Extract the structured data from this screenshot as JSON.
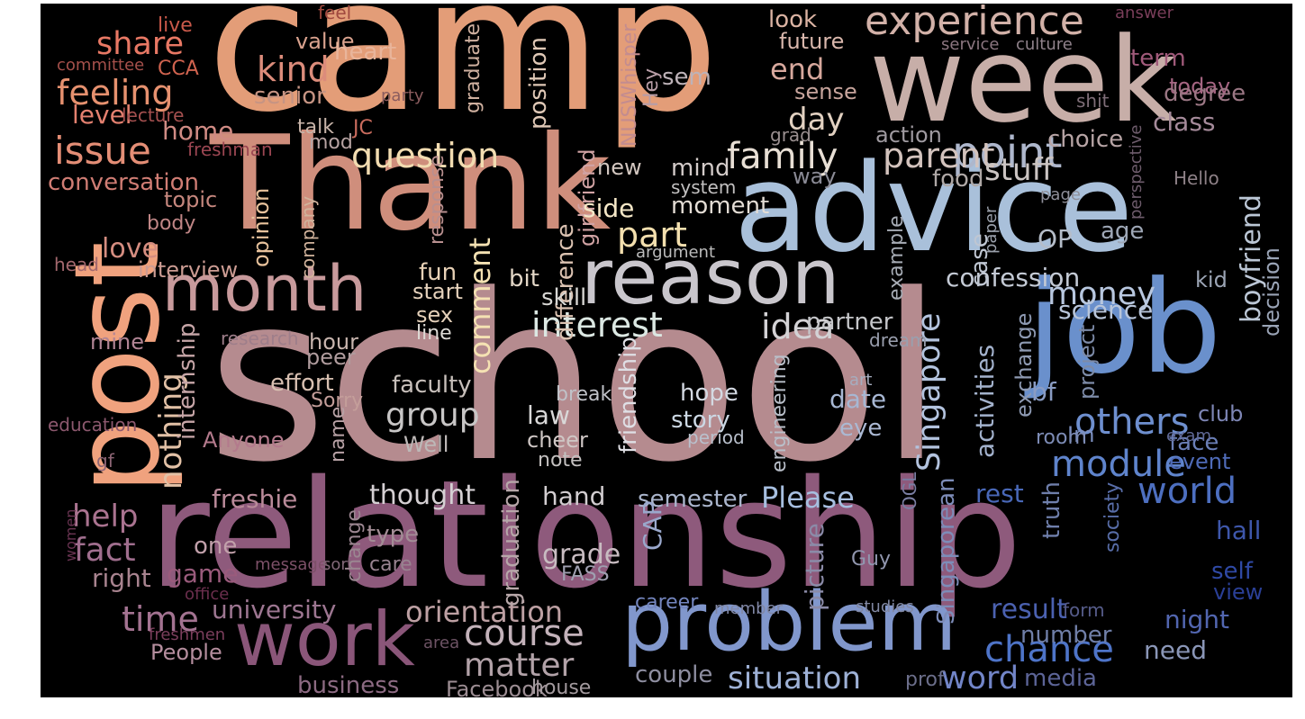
{
  "cloud": {
    "background": "#000000",
    "colormap_hint": "orange-salmon on the left to purple in the middle to blue on the right",
    "words": [
      {
        "text": "school",
        "color": "#b58b8f"
      },
      {
        "text": "camp",
        "color": "#e39d78"
      },
      {
        "text": "relationship",
        "color": "#8e5a7c"
      },
      {
        "text": "Thank",
        "color": "#cf8e7c"
      },
      {
        "text": "advice",
        "color": "#a9c0da"
      },
      {
        "text": "week",
        "color": "#c7aea8"
      },
      {
        "text": "job",
        "color": "#6a90cc"
      },
      {
        "text": "post",
        "color": "#f0a27e"
      },
      {
        "text": "problem",
        "color": "#8197cc"
      },
      {
        "text": "reason",
        "color": "#c9c6cc"
      },
      {
        "text": "work",
        "color": "#8a5679"
      },
      {
        "text": "month",
        "color": "#c89a9c"
      },
      {
        "text": "experience",
        "color": "#d2b1a8"
      },
      {
        "text": "family",
        "color": "#e8dfd5"
      },
      {
        "text": "point",
        "color": "#aeb7cc"
      },
      {
        "text": "kind",
        "color": "#dc8c7b"
      },
      {
        "text": "feeling",
        "color": "#e6916f"
      },
      {
        "text": "issue",
        "color": "#e48e76"
      },
      {
        "text": "share",
        "color": "#e87864"
      },
      {
        "text": "question",
        "color": "#f2dcb1"
      },
      {
        "text": "part",
        "color": "#f3dfae"
      },
      {
        "text": "parent",
        "color": "#d3c3bd"
      },
      {
        "text": "interest",
        "color": "#dce8e3"
      },
      {
        "text": "idea",
        "color": "#d3d2d5"
      },
      {
        "text": "money",
        "color": "#b8c7df"
      },
      {
        "text": "others",
        "color": "#6e8fcf"
      },
      {
        "text": "module",
        "color": "#5f84cc"
      },
      {
        "text": "world",
        "color": "#4d6fc0"
      },
      {
        "text": "Please",
        "color": "#a7bfe0"
      },
      {
        "text": "chance",
        "color": "#4e74c8"
      },
      {
        "text": "course",
        "color": "#c3b2ba"
      },
      {
        "text": "matter",
        "color": "#b2a2a8"
      },
      {
        "text": "orientation",
        "color": "#bda0a3"
      },
      {
        "text": "situation",
        "color": "#9eb1d6"
      },
      {
        "text": "word",
        "color": "#7285c8"
      },
      {
        "text": "time",
        "color": "#a37391"
      },
      {
        "text": "fact",
        "color": "#a06e8e"
      },
      {
        "text": "help",
        "color": "#aa7390"
      },
      {
        "text": "freshie",
        "color": "#b98a99"
      },
      {
        "text": "thought",
        "color": "#d5d0d3"
      },
      {
        "text": "group",
        "color": "#c8c6c6"
      },
      {
        "text": "Singapore",
        "color": "#b3c3de"
      },
      {
        "text": "nothing",
        "color": "#e2c1a6"
      },
      {
        "text": "comment",
        "color": "#f5e2b3"
      },
      {
        "text": "love",
        "color": "#d58d80"
      },
      {
        "text": "level",
        "color": "#e3806f"
      },
      {
        "text": "conversation",
        "color": "#d07d74"
      },
      {
        "text": "stuff",
        "color": "#cbc4c2"
      },
      {
        "text": "day",
        "color": "#e2d1c1"
      },
      {
        "text": "end",
        "color": "#d7a89d"
      },
      {
        "text": "look",
        "color": "#dbb3a3"
      },
      {
        "text": "future",
        "color": "#d9b7ac"
      },
      {
        "text": "term",
        "color": "#a05a7a"
      },
      {
        "text": "today",
        "color": "#a56582"
      },
      {
        "text": "degree",
        "color": "#9b7784"
      },
      {
        "text": "class",
        "color": "#a58a9a"
      },
      {
        "text": "choice",
        "color": "#b7a4a5"
      },
      {
        "text": "sense",
        "color": "#c8a59d"
      },
      {
        "text": "action",
        "color": "#9f9aa0"
      },
      {
        "text": "food",
        "color": "#afa8a6"
      },
      {
        "text": "way",
        "color": "#8a8a95"
      },
      {
        "text": "boyfriend",
        "color": "#bcc7d6"
      },
      {
        "text": "decision",
        "color": "#9aa4b6"
      },
      {
        "text": "confession",
        "color": "#c4cad5"
      },
      {
        "text": "science",
        "color": "#b8c5da"
      },
      {
        "text": "case",
        "color": "#bfc6d2"
      },
      {
        "text": "OP",
        "color": "#b5bdc9"
      },
      {
        "text": "age",
        "color": "#9ea7b6"
      },
      {
        "text": "kid",
        "color": "#9ba4b4"
      },
      {
        "text": "partner",
        "color": "#c5c6c9"
      },
      {
        "text": "activities",
        "color": "#a3b2cd"
      },
      {
        "text": "exchange",
        "color": "#8e9ab3"
      },
      {
        "text": "project",
        "color": "#7d8ba8"
      },
      {
        "text": "bf",
        "color": "#8a9cc3"
      },
      {
        "text": "club",
        "color": "#7e86b5"
      },
      {
        "text": "Im",
        "color": "#7c8fc0"
      },
      {
        "text": "room",
        "color": "#7d8cb6"
      },
      {
        "text": "face",
        "color": "#6b7fb7"
      },
      {
        "text": "event",
        "color": "#4f6bb8"
      },
      {
        "text": "exam",
        "color": "#616a98"
      },
      {
        "text": "rest",
        "color": "#4968b8"
      },
      {
        "text": "hall",
        "color": "#3e57ab"
      },
      {
        "text": "self",
        "color": "#2f49a5"
      },
      {
        "text": "view",
        "color": "#2a3f96"
      },
      {
        "text": "night",
        "color": "#5266b0"
      },
      {
        "text": "result",
        "color": "#4b61b0"
      },
      {
        "text": "number",
        "color": "#707fa8"
      },
      {
        "text": "need",
        "color": "#8a96b7"
      },
      {
        "text": "media",
        "color": "#5c6497"
      },
      {
        "text": "form",
        "color": "#565c8a"
      },
      {
        "text": "prof",
        "color": "#6b6e8a"
      },
      {
        "text": "studies",
        "color": "#8188a3"
      },
      {
        "text": "society",
        "color": "#586da8"
      },
      {
        "text": "truth",
        "color": "#6f7fab"
      },
      {
        "text": "Singaporean",
        "color": "#7d8cb8"
      },
      {
        "text": "Guy",
        "color": "#9196ae"
      },
      {
        "text": "OGL",
        "color": "#7a7ea3"
      },
      {
        "text": "picture",
        "color": "#8b8ba8"
      },
      {
        "text": "member",
        "color": "#8188a6"
      },
      {
        "text": "career",
        "color": "#7486bf"
      },
      {
        "text": "couple",
        "color": "#8e8ea0"
      },
      {
        "text": "semester",
        "color": "#aab5cc"
      },
      {
        "text": "CAP",
        "color": "#9aa8cc"
      },
      {
        "text": "grade",
        "color": "#c8bcc1"
      },
      {
        "text": "FASS",
        "color": "#9f9fb0"
      },
      {
        "text": "hand",
        "color": "#d2cdd0"
      },
      {
        "text": "Facebook",
        "color": "#9c8d93"
      },
      {
        "text": "house",
        "color": "#a39a9e"
      },
      {
        "text": "business",
        "color": "#8c6a82"
      },
      {
        "text": "university",
        "color": "#9d7691"
      },
      {
        "text": "People",
        "color": "#b58e9e"
      },
      {
        "text": "freshmen",
        "color": "#7b3e5c"
      },
      {
        "text": "area",
        "color": "#6d5364"
      },
      {
        "text": "office",
        "color": "#6b2e4d"
      },
      {
        "text": "message",
        "color": "#7d5068"
      },
      {
        "text": "sort",
        "color": "#826878"
      },
      {
        "text": "care",
        "color": "#998390"
      },
      {
        "text": "type",
        "color": "#a38d96"
      },
      {
        "text": "change",
        "color": "#9b8691"
      },
      {
        "text": "graduation",
        "color": "#b7a7a9"
      },
      {
        "text": "one",
        "color": "#c1a0aa"
      },
      {
        "text": "game",
        "color": "#9a5b7c"
      },
      {
        "text": "right",
        "color": "#a8838f"
      },
      {
        "text": "women",
        "color": "#6a3452"
      },
      {
        "text": "gf",
        "color": "#8d6575"
      },
      {
        "text": "education",
        "color": "#8c586e"
      },
      {
        "text": "Anyone",
        "color": "#b37a8c"
      },
      {
        "text": "internship",
        "color": "#c7a6a8"
      },
      {
        "text": "name",
        "color": "#b8a2a6"
      },
      {
        "text": "Sorry",
        "color": "#c49e9a"
      },
      {
        "text": "effort",
        "color": "#d8c0b1"
      },
      {
        "text": "peer",
        "color": "#b09c9e"
      },
      {
        "text": "hour",
        "color": "#c8b5ae"
      },
      {
        "text": "research",
        "color": "#9e7e8a"
      },
      {
        "text": "mine",
        "color": "#b28595"
      },
      {
        "text": "head",
        "color": "#a3686e"
      },
      {
        "text": "interview",
        "color": "#cc9c93"
      },
      {
        "text": "body",
        "color": "#c08686"
      },
      {
        "text": "topic",
        "color": "#c6877e"
      },
      {
        "text": "opinion",
        "color": "#e8c29c"
      },
      {
        "text": "company",
        "color": "#d1b39c"
      },
      {
        "text": "mod",
        "color": "#b7a3a2"
      },
      {
        "text": "talk",
        "color": "#c8b4a9"
      },
      {
        "text": "JC",
        "color": "#c96b5d"
      },
      {
        "text": "freshman",
        "color": "#9b4652"
      },
      {
        "text": "home",
        "color": "#d08b84"
      },
      {
        "text": "lecture",
        "color": "#a5504f"
      },
      {
        "text": "CCA",
        "color": "#d0634f"
      },
      {
        "text": "committee",
        "color": "#a5504b"
      },
      {
        "text": "live",
        "color": "#c9594a"
      },
      {
        "text": "feel",
        "color": "#a0493f"
      },
      {
        "text": "value",
        "color": "#d9a28e"
      },
      {
        "text": "heart",
        "color": "#e9b59b"
      },
      {
        "text": "senior",
        "color": "#c69483"
      },
      {
        "text": "party",
        "color": "#8b5c5e"
      },
      {
        "text": "graduate",
        "color": "#cfb09f"
      },
      {
        "text": "position",
        "color": "#dfc8b6"
      },
      {
        "text": "NUSWhisper",
        "color": "#c38c8f"
      },
      {
        "text": "Hey",
        "color": "#b89da6"
      },
      {
        "text": "sem",
        "color": "#bdb2b8"
      },
      {
        "text": "girlfriend",
        "color": "#d1a3a4"
      },
      {
        "text": "difference",
        "color": "#dbc2b1"
      },
      {
        "text": "response",
        "color": "#b88f8f"
      },
      {
        "text": "new",
        "color": "#d3c7c0"
      },
      {
        "text": "system",
        "color": "#c2c0c0"
      },
      {
        "text": "grad",
        "color": "#9a8f90"
      },
      {
        "text": "mind",
        "color": "#d3cbc9"
      },
      {
        "text": "moment",
        "color": "#e4ddd5"
      },
      {
        "text": "side",
        "color": "#f4e7c7"
      },
      {
        "text": "argument",
        "color": "#bcbcbc"
      },
      {
        "text": "fun",
        "color": "#e9d2b7"
      },
      {
        "text": "bit",
        "color": "#e2d6c6"
      },
      {
        "text": "start",
        "color": "#e5d1bb"
      },
      {
        "text": "skill",
        "color": "#d8d7d4"
      },
      {
        "text": "sex",
        "color": "#e4d0b9"
      },
      {
        "text": "line",
        "color": "#dedbd6"
      },
      {
        "text": "faculty",
        "color": "#c8c0bb"
      },
      {
        "text": "law",
        "color": "#d9d8d8"
      },
      {
        "text": "cheer",
        "color": "#cfc7c5"
      },
      {
        "text": "Well",
        "color": "#bdb8b7"
      },
      {
        "text": "note",
        "color": "#c4c1c0"
      },
      {
        "text": "friendship",
        "color": "#dfdfe5"
      },
      {
        "text": "break",
        "color": "#c0c2c8"
      },
      {
        "text": "hope",
        "color": "#d4d9e2"
      },
      {
        "text": "story",
        "color": "#ccd8e4"
      },
      {
        "text": "period",
        "color": "#b9c0cc"
      },
      {
        "text": "date",
        "color": "#a7b7d3"
      },
      {
        "text": "eye",
        "color": "#abb9d3"
      },
      {
        "text": "engineering",
        "color": "#b9bfc9"
      },
      {
        "text": "art",
        "color": "#a6adbf"
      },
      {
        "text": "dream",
        "color": "#9a9fae"
      },
      {
        "text": "example",
        "color": "#a7acb5"
      },
      {
        "text": "paper",
        "color": "#9aa0ab"
      },
      {
        "text": "page",
        "color": "#8f8f99"
      },
      {
        "text": "perspective",
        "color": "#6e5c6c"
      },
      {
        "text": "Hello",
        "color": "#8e8187"
      },
      {
        "text": "shit",
        "color": "#7e6d77"
      },
      {
        "text": "service",
        "color": "#8c7680"
      },
      {
        "text": "culture",
        "color": "#90828b"
      },
      {
        "text": "answer",
        "color": "#7a3e5a"
      }
    ]
  }
}
